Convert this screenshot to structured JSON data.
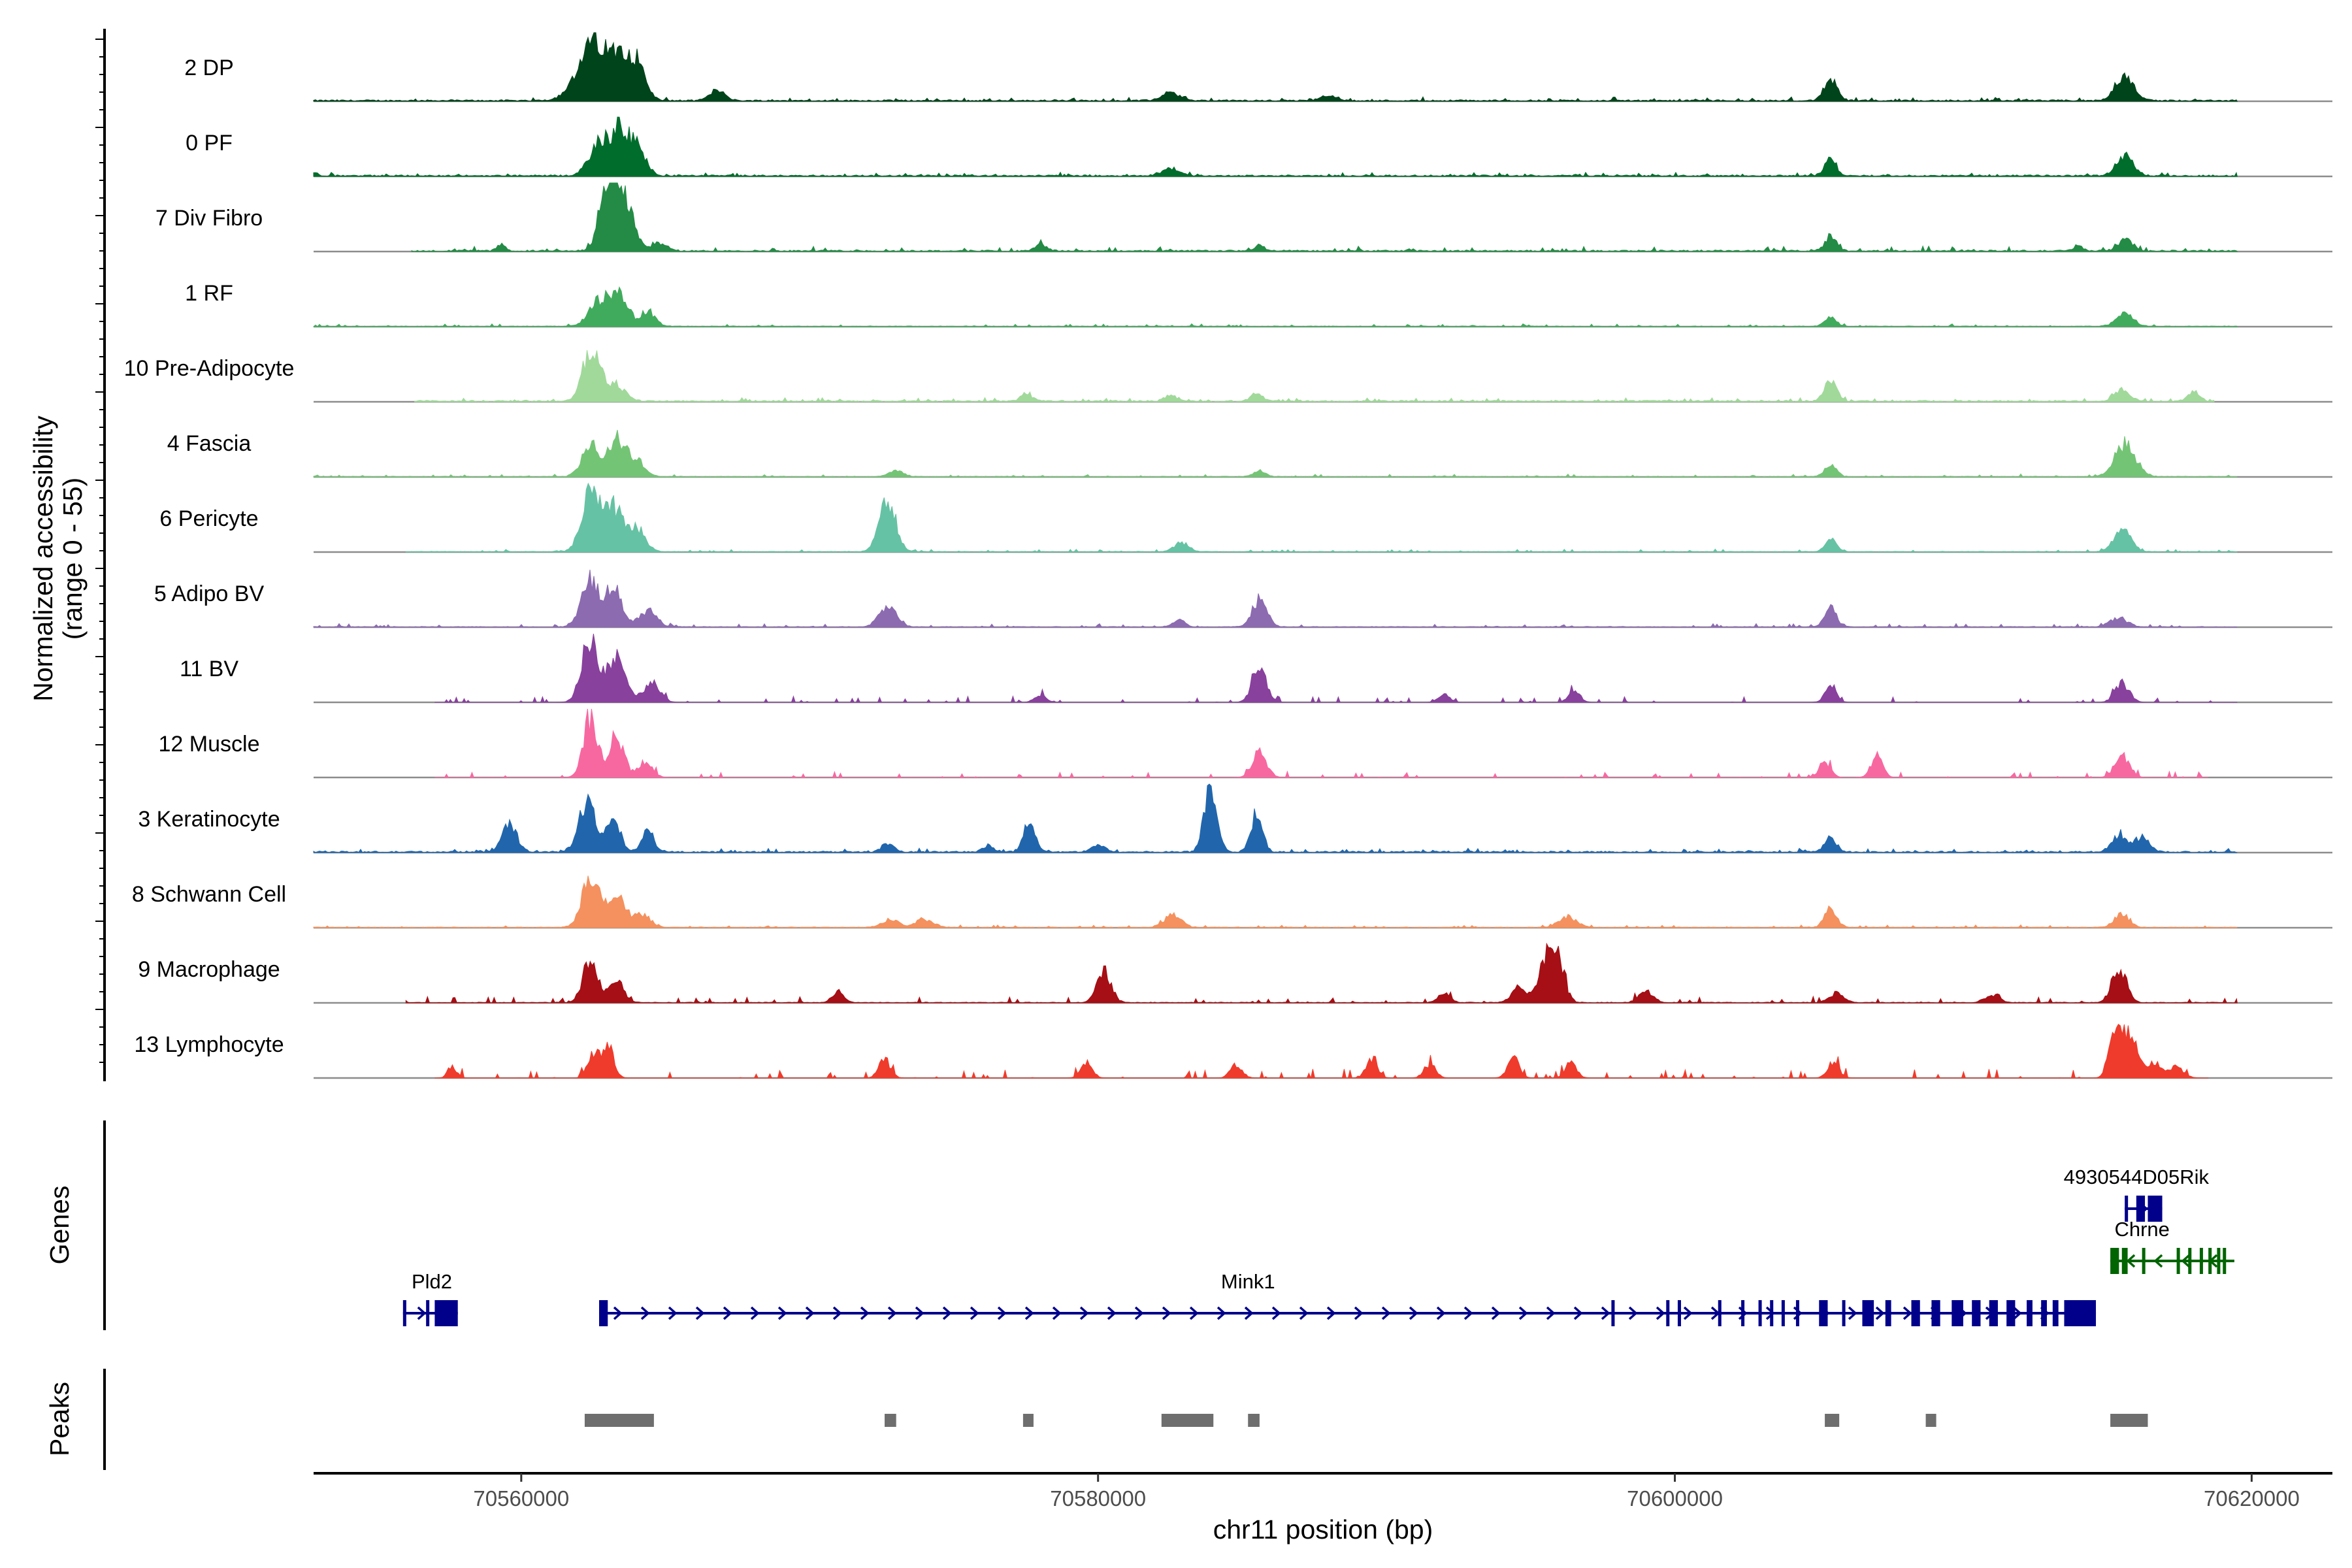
{
  "chart_data": {
    "type": "area",
    "title": "",
    "xlabel": "chr11 position (bp)",
    "ylabel": "Normalized accessibility",
    "ylabel_range": "(range 0 - 55)",
    "xlim": [
      70552800,
      70622800
    ],
    "ylim": [
      0,
      55
    ],
    "x_ticks": [
      70560000,
      70580000,
      70600000,
      70620000
    ],
    "x_tick_labels": [
      "70560000",
      "70580000",
      "70600000",
      "70620000"
    ],
    "genes_label": "Genes",
    "peaks_label": "Peaks",
    "tracks": [
      {
        "name": "2 DP",
        "color": "#00441b",
        "start": 70552800,
        "end": 70619500,
        "peaks": [
          [
            70562600,
            28,
            350
          ],
          [
            70563400,
            30,
            300
          ],
          [
            70564000,
            24,
            300
          ],
          [
            70562200,
            16,
            500
          ],
          [
            70605400,
            14,
            220
          ],
          [
            70615600,
            18,
            300
          ],
          [
            70566800,
            7,
            250
          ],
          [
            70582500,
            5,
            300
          ],
          [
            70588000,
            3,
            300
          ]
        ],
        "noise": [
          1,
          2
        ]
      },
      {
        "name": "0 PF",
        "color": "#006d2c",
        "start": 70552800,
        "end": 70619500,
        "peaks": [
          [
            70562700,
            20,
            350
          ],
          [
            70563400,
            26,
            300
          ],
          [
            70564000,
            18,
            300
          ],
          [
            70605400,
            11,
            200
          ],
          [
            70615600,
            12,
            300
          ],
          [
            70582500,
            5,
            300
          ]
        ],
        "noise": [
          1,
          2
        ]
      },
      {
        "name": "7 Div Fibro",
        "color": "#238b45",
        "start": 70556200,
        "end": 70619500,
        "peaks": [
          [
            70563300,
            40,
            300
          ],
          [
            70562900,
            30,
            250
          ],
          [
            70563800,
            16,
            250
          ],
          [
            70559300,
            4,
            150
          ],
          [
            70564800,
            5,
            250
          ],
          [
            70605400,
            10,
            200
          ],
          [
            70615600,
            7,
            250
          ],
          [
            70614000,
            4,
            150
          ],
          [
            70585600,
            4,
            150
          ],
          [
            70578000,
            4,
            200
          ]
        ],
        "noise": [
          1,
          3
        ]
      },
      {
        "name": "1 RF",
        "color": "#41ab5d",
        "start": 70552800,
        "end": 70619500,
        "peaks": [
          [
            70562700,
            16,
            350
          ],
          [
            70563400,
            22,
            300
          ],
          [
            70564400,
            9,
            250
          ],
          [
            70605400,
            6,
            200
          ],
          [
            70615600,
            8,
            300
          ]
        ],
        "noise": [
          0.5,
          1.5
        ]
      },
      {
        "name": "10 Pre-Adipocyte",
        "color": "#a1d99b",
        "start": 70556300,
        "end": 70618700,
        "peaks": [
          [
            70562300,
            24,
            250
          ],
          [
            70562700,
            16,
            250
          ],
          [
            70563300,
            10,
            300
          ],
          [
            70605400,
            15,
            200
          ],
          [
            70615500,
            8,
            250
          ],
          [
            70577500,
            5,
            200
          ],
          [
            70585500,
            5,
            200
          ],
          [
            70618000,
            6,
            200
          ],
          [
            70582500,
            4,
            200
          ]
        ],
        "noise": [
          1,
          2
        ]
      },
      {
        "name": "4 Fascia",
        "color": "#74c476",
        "start": 70552800,
        "end": 70619500,
        "peaks": [
          [
            70562400,
            20,
            300
          ],
          [
            70563300,
            24,
            300
          ],
          [
            70564000,
            10,
            300
          ],
          [
            70605400,
            8,
            200
          ],
          [
            70615600,
            22,
            350
          ],
          [
            70573000,
            4,
            250
          ],
          [
            70585600,
            4,
            200
          ]
        ],
        "noise": [
          0.5,
          1.5
        ]
      },
      {
        "name": "6 Pericyte",
        "color": "#66c2a4",
        "start": 70556000,
        "end": 70619500,
        "peaks": [
          [
            70562400,
            40,
            300
          ],
          [
            70563200,
            28,
            300
          ],
          [
            70564000,
            15,
            300
          ],
          [
            70572700,
            34,
            280
          ],
          [
            70582900,
            6,
            250
          ],
          [
            70605400,
            8,
            200
          ],
          [
            70615500,
            14,
            300
          ]
        ],
        "noise": [
          0.5,
          1.5
        ]
      },
      {
        "name": "5 Adipo BV",
        "color": "#8c6bb1",
        "start": 70552800,
        "end": 70619500,
        "peaks": [
          [
            70562400,
            30,
            300
          ],
          [
            70563200,
            24,
            300
          ],
          [
            70564400,
            10,
            300
          ],
          [
            70572700,
            14,
            300
          ],
          [
            70585600,
            18,
            250
          ],
          [
            70605400,
            13,
            200
          ],
          [
            70615400,
            6,
            300
          ],
          [
            70582800,
            5,
            200
          ]
        ],
        "noise": [
          0.5,
          2
        ]
      },
      {
        "name": "11 BV",
        "color": "#88419d",
        "start": 70557000,
        "end": 70619500,
        "peaks": [
          [
            70562400,
            38,
            300
          ],
          [
            70563300,
            28,
            300
          ],
          [
            70564500,
            12,
            300
          ],
          [
            70585600,
            22,
            250
          ],
          [
            70605400,
            10,
            200
          ],
          [
            70615500,
            12,
            250
          ],
          [
            70596500,
            8,
            200
          ],
          [
            70592000,
            5,
            200
          ],
          [
            70578000,
            5,
            200
          ]
        ],
        "noise": [
          0,
          4
        ]
      },
      {
        "name": "12 Muscle",
        "color": "#f768a1",
        "start": 70557000,
        "end": 70618500,
        "peaks": [
          [
            70562400,
            38,
            250
          ],
          [
            70563300,
            28,
            250
          ],
          [
            70564300,
            10,
            250
          ],
          [
            70585600,
            16,
            250
          ],
          [
            70605200,
            10,
            200
          ],
          [
            70607000,
            14,
            200
          ],
          [
            70615500,
            14,
            250
          ]
        ],
        "noise": [
          0,
          4
        ]
      },
      {
        "name": "3 Keratinocyte",
        "color": "#2166ac",
        "start": 70552800,
        "end": 70619500,
        "peaks": [
          [
            70559600,
            18,
            250
          ],
          [
            70562300,
            32,
            300
          ],
          [
            70563200,
            18,
            250
          ],
          [
            70564400,
            14,
            200
          ],
          [
            70577600,
            20,
            200
          ],
          [
            70583900,
            44,
            220
          ],
          [
            70585500,
            26,
            200
          ],
          [
            70605400,
            9,
            200
          ],
          [
            70615400,
            11,
            250
          ],
          [
            70616200,
            10,
            250
          ],
          [
            70572700,
            6,
            200
          ],
          [
            70576200,
            4,
            200
          ],
          [
            70580000,
            4,
            250
          ]
        ],
        "noise": [
          1,
          2
        ]
      },
      {
        "name": "8 Schwann Cell",
        "color": "#f4915e",
        "start": 70552800,
        "end": 70619500,
        "peaks": [
          [
            70562400,
            32,
            300
          ],
          [
            70563300,
            20,
            300
          ],
          [
            70564200,
            8,
            300
          ],
          [
            70572800,
            5,
            300
          ],
          [
            70574000,
            5,
            300
          ],
          [
            70582600,
            8,
            300
          ],
          [
            70596300,
            7,
            300
          ],
          [
            70605400,
            13,
            200
          ],
          [
            70615500,
            9,
            250
          ]
        ],
        "noise": [
          0.5,
          1.5
        ]
      },
      {
        "name": "9 Macrophage",
        "color": "#a50f15",
        "start": 70556000,
        "end": 70619500,
        "peaks": [
          [
            70562400,
            28,
            250
          ],
          [
            70563300,
            14,
            250
          ],
          [
            70580200,
            20,
            250
          ],
          [
            70595500,
            24,
            250
          ],
          [
            70595900,
            30,
            250
          ],
          [
            70594600,
            10,
            250
          ],
          [
            70592000,
            6,
            200
          ],
          [
            70615400,
            22,
            250
          ],
          [
            70571000,
            7,
            200
          ],
          [
            70599000,
            8,
            250
          ],
          [
            70605600,
            6,
            250
          ],
          [
            70611000,
            5,
            250
          ]
        ],
        "noise": [
          0.5,
          4
        ]
      },
      {
        "name": "13 Lymphocyte",
        "color": "#ef3b2c",
        "start": 70557000,
        "end": 70618500,
        "peaks": [
          [
            70563000,
            22,
            200
          ],
          [
            70562500,
            14,
            200
          ],
          [
            70572600,
            12,
            200
          ],
          [
            70579600,
            10,
            200
          ],
          [
            70584800,
            9,
            200
          ],
          [
            70589500,
            12,
            200
          ],
          [
            70591500,
            9,
            200
          ],
          [
            70594400,
            14,
            200
          ],
          [
            70596400,
            9,
            200
          ],
          [
            70605500,
            10,
            200
          ],
          [
            70615300,
            32,
            220
          ],
          [
            70615800,
            26,
            250
          ],
          [
            70616600,
            10,
            250
          ],
          [
            70617400,
            7,
            250
          ],
          [
            70557600,
            8,
            150
          ]
        ],
        "noise": [
          0,
          6
        ]
      }
    ],
    "genes": [
      {
        "name": "Pld2",
        "color": "#00008b",
        "strand": "+",
        "start": 70555900,
        "end": 70557800,
        "label_x": 70556900,
        "row": "bottom",
        "exons": [
          [
            70555900,
            70556000
          ],
          [
            70556700,
            70556800
          ],
          [
            70557000,
            70557800
          ]
        ]
      },
      {
        "name": "Mink1",
        "color": "#00008b",
        "strand": "+",
        "start": 70562700,
        "end": 70614600,
        "label_x": 70585200,
        "row": "bottom",
        "exons": [
          [
            70562700,
            70563000
          ],
          [
            70597800,
            70597900
          ],
          [
            70599700,
            70599800
          ],
          [
            70600100,
            70600200
          ],
          [
            70601500,
            70601600
          ],
          [
            70602300,
            70602400
          ],
          [
            70602900,
            70603000
          ],
          [
            70603300,
            70603400
          ],
          [
            70603700,
            70603800
          ],
          [
            70604200,
            70604300
          ],
          [
            70605000,
            70605300
          ],
          [
            70605800,
            70605900
          ],
          [
            70606500,
            70606900
          ],
          [
            70607300,
            70607500
          ],
          [
            70608200,
            70608500
          ],
          [
            70608900,
            70609200
          ],
          [
            70609600,
            70610000
          ],
          [
            70610300,
            70610600
          ],
          [
            70610900,
            70611200
          ],
          [
            70611500,
            70611800
          ],
          [
            70612200,
            70612400
          ],
          [
            70612700,
            70612900
          ],
          [
            70613100,
            70613300
          ],
          [
            70613500,
            70614600
          ]
        ]
      },
      {
        "name": "4930544D05Rik",
        "color": "#00008b",
        "strand": "+",
        "start": 70615600,
        "end": 70616900,
        "label_x": 70616000,
        "row": "top",
        "exons": [
          [
            70615600,
            70615700
          ],
          [
            70616000,
            70616300
          ],
          [
            70616400,
            70616900
          ]
        ]
      },
      {
        "name": "Chrne",
        "color": "#006400",
        "strand": "-",
        "start": 70615100,
        "end": 70619400,
        "label_x": 70616200,
        "row": "middle",
        "exons": [
          [
            70615100,
            70615400
          ],
          [
            70615500,
            70615700
          ],
          [
            70616200,
            70616300
          ],
          [
            70617400,
            70617500
          ],
          [
            70617800,
            70617900
          ],
          [
            70618200,
            70618300
          ],
          [
            70618500,
            70618600
          ],
          [
            70618800,
            70618900
          ],
          [
            70619000,
            70619100
          ]
        ]
      }
    ],
    "peaks": [
      [
        70562200,
        70564600
      ],
      [
        70572600,
        70573000
      ],
      [
        70577400,
        70577600
      ],
      [
        70582200,
        70584000
      ],
      [
        70585200,
        70585600
      ],
      [
        70605200,
        70605700
      ],
      [
        70608700,
        70608900
      ],
      [
        70615100,
        70616400
      ]
    ]
  }
}
